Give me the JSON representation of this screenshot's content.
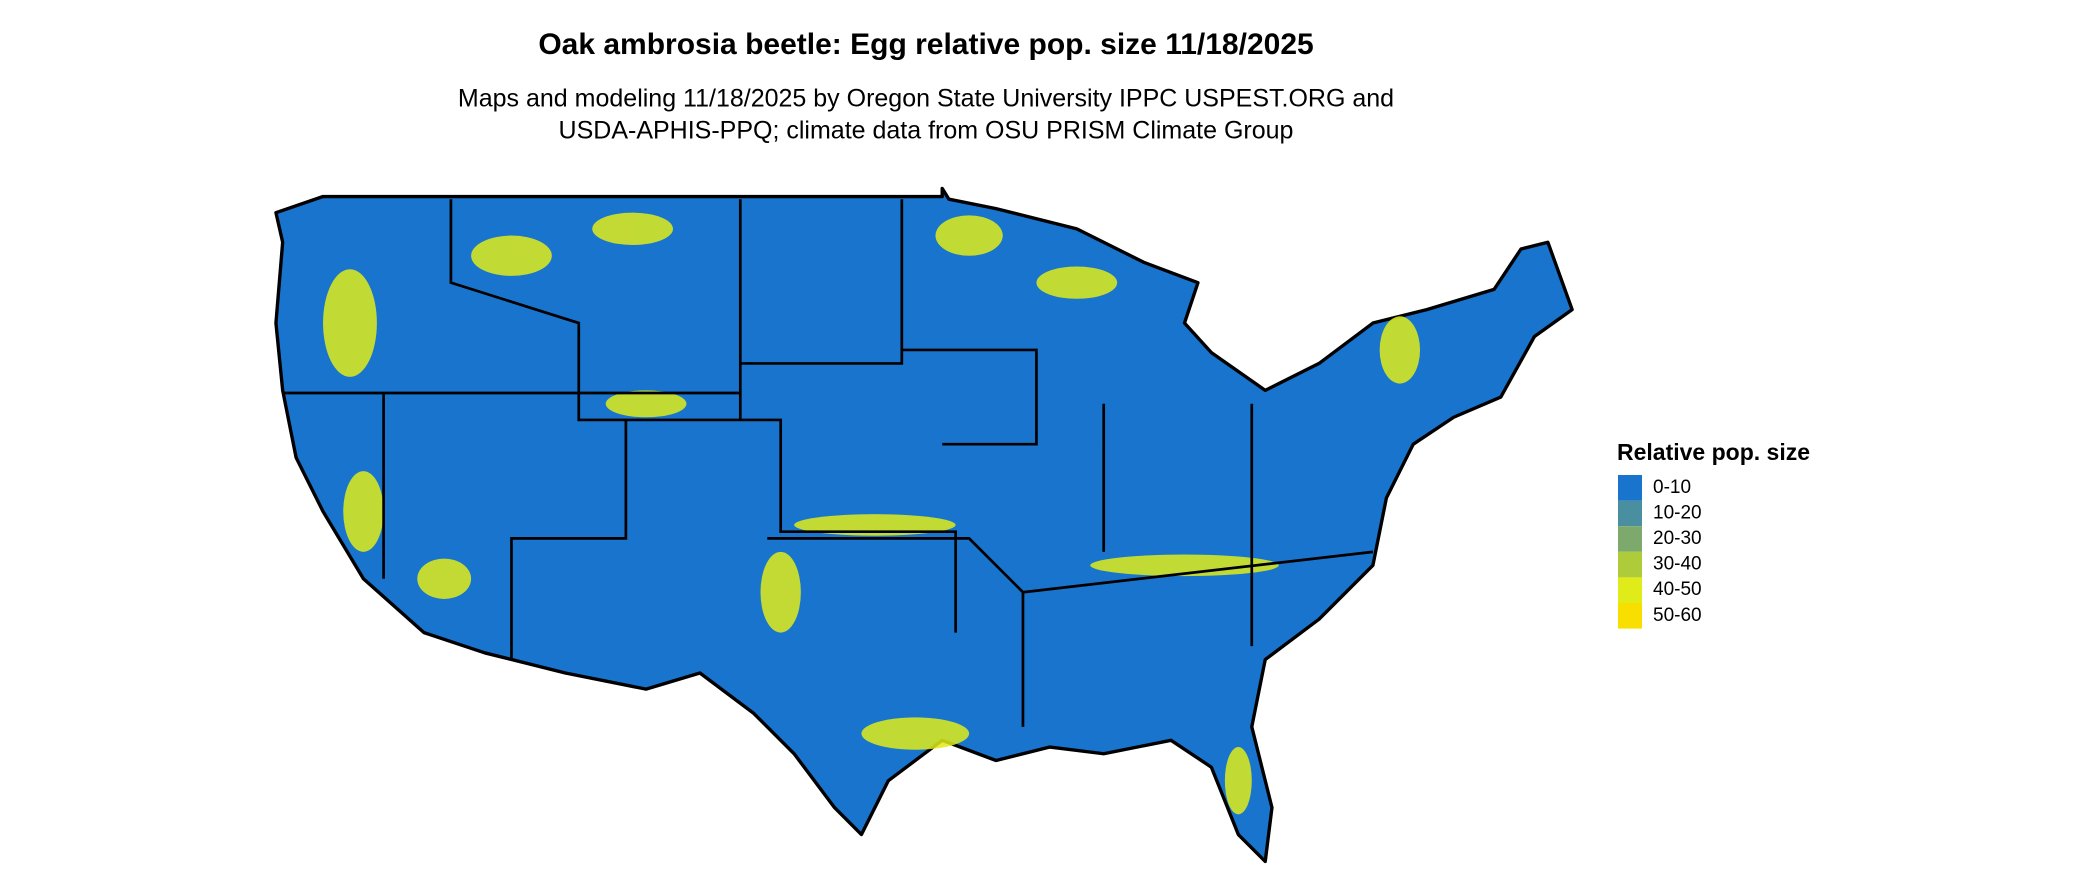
{
  "header": {
    "title": "Oak ambrosia beetle: Egg relative pop. size 11/18/2025",
    "subtitle": [
      "Maps and modeling 11/18/2025 by Oregon State University IPPC USPEST.ORG and",
      "USDA-APHIS-PPQ; climate data from OSU PRISM Climate Group"
    ]
  },
  "legend": {
    "title": "Relative pop. size",
    "items": [
      {
        "label": "0-10",
        "color": "#1874cd"
      },
      {
        "label": "10-20",
        "color": "#4a8fa0"
      },
      {
        "label": "20-30",
        "color": "#7ea96c"
      },
      {
        "label": "30-40",
        "color": "#aecb3a"
      },
      {
        "label": "40-50",
        "color": "#e0ec19"
      },
      {
        "label": "50-60",
        "color": "#f8df00"
      }
    ]
  }
}
